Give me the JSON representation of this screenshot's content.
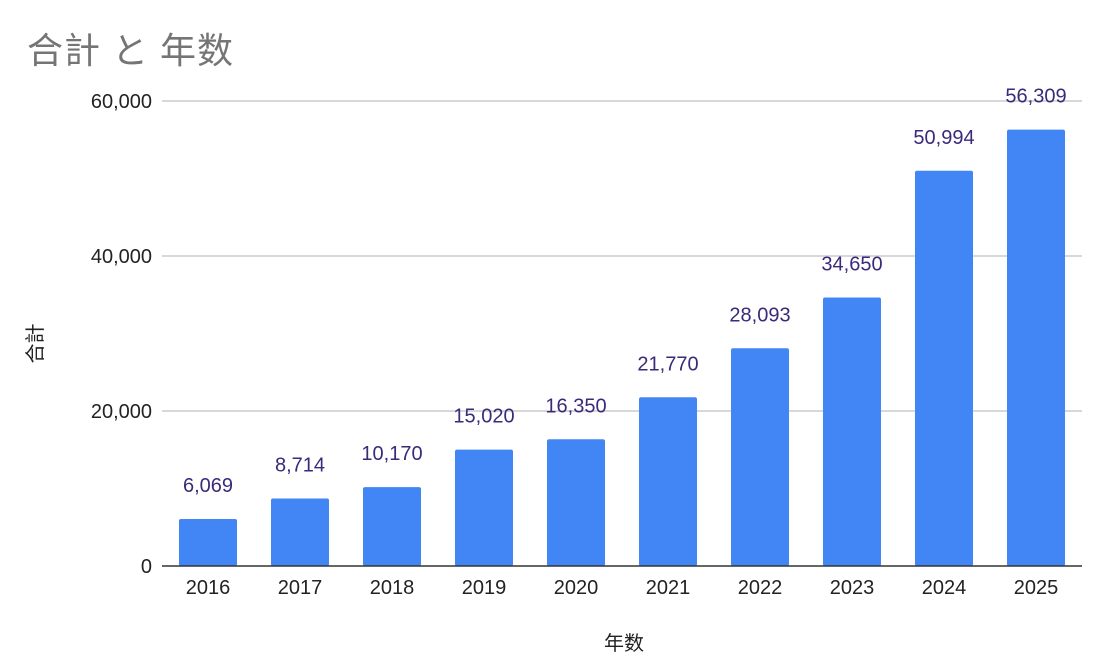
{
  "chart_data": {
    "type": "bar",
    "title": "合計 と 年数",
    "xlabel": "年数",
    "ylabel": "合計",
    "categories": [
      "2016",
      "2017",
      "2018",
      "2019",
      "2020",
      "2021",
      "2022",
      "2023",
      "2024",
      "2025"
    ],
    "values": [
      6069,
      8714,
      10170,
      15020,
      16350,
      21770,
      28093,
      34650,
      50994,
      56309
    ],
    "data_labels": [
      "6,069",
      "8,714",
      "10,170",
      "15,020",
      "16,350",
      "21,770",
      "28,093",
      "34,650",
      "50,994",
      "56,309"
    ],
    "y_ticks": [
      0,
      20000,
      40000,
      60000
    ],
    "y_tick_labels": [
      "0",
      "20,000",
      "40,000",
      "60,000"
    ],
    "ylim": [
      0,
      60000
    ],
    "grid": true,
    "legend": "none",
    "bar_color": "#4285f4",
    "label_color": "#3b2a7a",
    "title_color": "#757575"
  }
}
